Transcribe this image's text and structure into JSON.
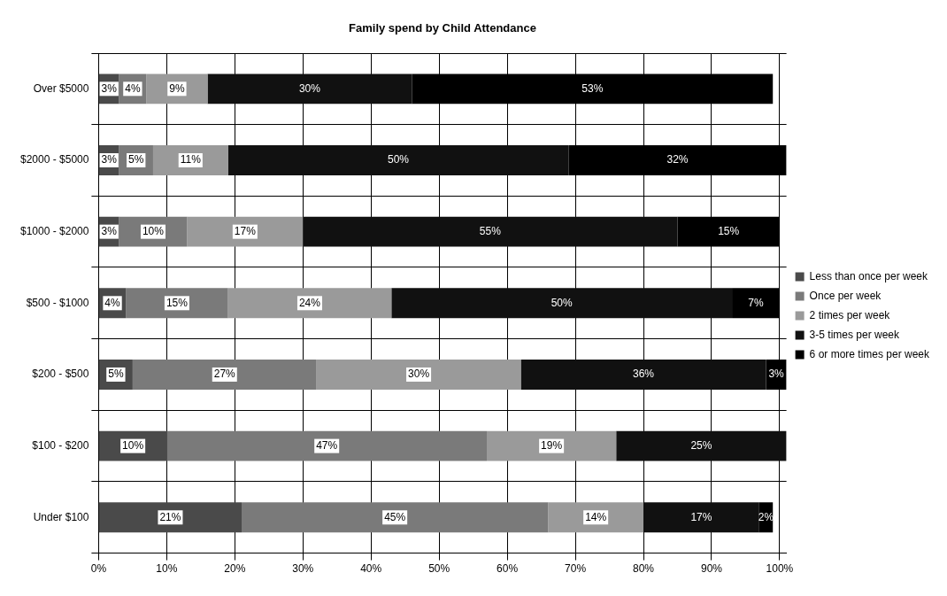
{
  "chart_data": {
    "type": "bar",
    "orientation": "horizontal",
    "stacked": true,
    "title": "Family spend by Child Attendance",
    "categories": [
      "Over $5000",
      "$2000 - $5000",
      "$1000 - $2000",
      "$500 - $1000",
      "$200 - $500",
      "$100 - $200",
      "Under $100"
    ],
    "series": [
      {
        "name": "Less than once per week",
        "color": "#4a4a4a",
        "values": [
          3,
          3,
          3,
          4,
          5,
          10,
          21
        ],
        "value_labels": [
          "3%",
          "3%",
          "3%",
          "4%",
          "5%",
          "10%",
          "21%"
        ]
      },
      {
        "name": "Once per week",
        "color": "#7a7a7a",
        "values": [
          4,
          5,
          10,
          15,
          27,
          47,
          45
        ],
        "value_labels": [
          "4%",
          "5%",
          "10%",
          "15%",
          "27%",
          "47%",
          "45%"
        ]
      },
      {
        "name": "2 times per week",
        "color": "#9a9a9a",
        "values": [
          9,
          11,
          17,
          24,
          30,
          19,
          14
        ],
        "value_labels": [
          "9%",
          "11%",
          "17%",
          "24%",
          "30%",
          "19%",
          "14%"
        ]
      },
      {
        "name": "3-5 times per week",
        "color": "#111111",
        "values": [
          30,
          50,
          55,
          50,
          36,
          25,
          17
        ],
        "value_labels": [
          "30%",
          "50%",
          "55%",
          "50%",
          "36%",
          "25%",
          "17%"
        ]
      },
      {
        "name": "6 or more times per week",
        "color": "#000000",
        "values": [
          53,
          32,
          15,
          7,
          3,
          null,
          2
        ],
        "value_labels": [
          "53%",
          "32%",
          "15%",
          "7%",
          "3%",
          null,
          "2%"
        ]
      }
    ],
    "xlim": [
      0,
      101
    ],
    "xticks": [
      {
        "value": 0,
        "label": "0%"
      },
      {
        "value": 10,
        "label": "10%"
      },
      {
        "value": 20,
        "label": "20%"
      },
      {
        "value": 30,
        "label": "30%"
      },
      {
        "value": 40,
        "label": "40%"
      },
      {
        "value": 50,
        "label": "50%"
      },
      {
        "value": 60,
        "label": "60%"
      },
      {
        "value": 70,
        "label": "70%"
      },
      {
        "value": 80,
        "label": "80%"
      },
      {
        "value": 90,
        "label": "90%"
      },
      {
        "value": 100,
        "label": "100%"
      }
    ],
    "grid": true,
    "legend": "right"
  }
}
